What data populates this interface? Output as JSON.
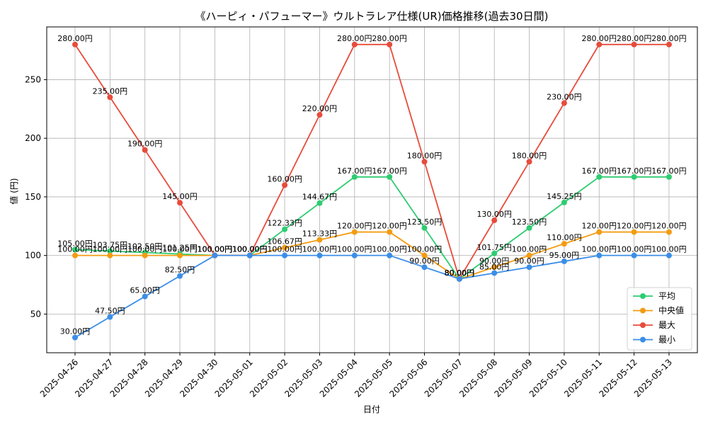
{
  "chart_data": {
    "type": "line",
    "title": "《ハーピィ・パフューマー》ウルトラレア仕様(UR)価格推移(過去30日間)",
    "xlabel": "日付",
    "ylabel": "値 (円)",
    "ylim": [
      17,
      295
    ],
    "yticks": [
      50,
      100,
      150,
      200,
      250
    ],
    "grid": true,
    "legend_position": "lower-right",
    "label_suffix": "円",
    "categories": [
      "2025-04-26",
      "2025-04-27",
      "2025-04-28",
      "2025-04-29",
      "2025-04-30",
      "2025-05-01",
      "2025-05-02",
      "2025-05-03",
      "2025-05-04",
      "2025-05-05",
      "2025-05-06",
      "2025-05-07",
      "2025-05-08",
      "2025-05-09",
      "2025-05-10",
      "2025-05-11",
      "2025-05-12",
      "2025-05-13"
    ],
    "series": [
      {
        "name": "平均",
        "color": "#2ecc71",
        "values": [
          105.0,
          103.75,
          102.5,
          101.25,
          100.0,
          100.0,
          122.33,
          144.67,
          167.0,
          167.0,
          123.5,
          80.0,
          101.75,
          123.5,
          145.25,
          167.0,
          167.0,
          167.0
        ]
      },
      {
        "name": "中央値",
        "color": "#f39c12",
        "values": [
          100.0,
          100.0,
          100.0,
          100.0,
          100.0,
          100.0,
          106.67,
          113.33,
          120.0,
          120.0,
          100.0,
          80.0,
          90.0,
          100.0,
          110.0,
          120.0,
          120.0,
          120.0
        ]
      },
      {
        "name": "最大",
        "color": "#e74c3c",
        "values": [
          280.0,
          235.0,
          190.0,
          145.0,
          100.0,
          100.0,
          160.0,
          220.0,
          280.0,
          280.0,
          180.0,
          80.0,
          130.0,
          180.0,
          230.0,
          280.0,
          280.0,
          280.0
        ]
      },
      {
        "name": "最小",
        "color": "#3b8ee8",
        "values": [
          30.0,
          47.5,
          65.0,
          82.5,
          100.0,
          100.0,
          100.0,
          100.0,
          100.0,
          100.0,
          90.0,
          80.0,
          85.0,
          90.0,
          95.0,
          100.0,
          100.0,
          100.0
        ]
      }
    ]
  }
}
